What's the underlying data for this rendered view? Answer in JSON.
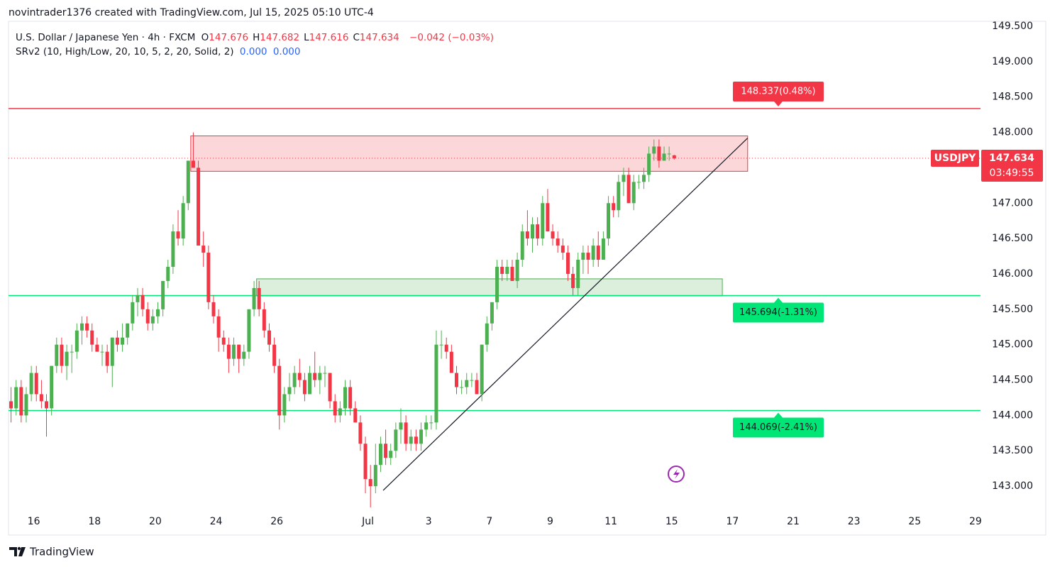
{
  "header": {
    "watermark": "novintrader1376 created with TradingView.com, Jul 15, 2025 05:10 UTC-4",
    "symbol": "U.S. Dollar / Japanese Yen · 4h · FXCM",
    "ohlc": [
      {
        "k": "O",
        "v": "147.676"
      },
      {
        "k": "H",
        "v": "147.682"
      },
      {
        "k": "L",
        "v": "147.616"
      },
      {
        "k": "C",
        "v": "147.634"
      }
    ],
    "change": "−0.042 (−0.03%)",
    "indicator": "SRv2 (10, High/Low, 20, 10, 5, 2, 20, Solid, 2)",
    "indicator_values": [
      "0.000",
      "0.000"
    ]
  },
  "footer": {
    "brand": "TradingView"
  },
  "chart_data": {
    "type": "candlestick",
    "up_color": "#4caf50",
    "down_color": "#f23645",
    "grid": false,
    "xlim": [
      0,
      192
    ],
    "ylim": [
      142.7,
      149.57
    ],
    "xticks": [
      {
        "value": 5,
        "label": "16"
      },
      {
        "value": 17,
        "label": "18"
      },
      {
        "value": 29,
        "label": "20"
      },
      {
        "value": 41,
        "label": "24"
      },
      {
        "value": 53,
        "label": "26"
      },
      {
        "value": 71,
        "label": "Jul"
      },
      {
        "value": 83,
        "label": "3"
      },
      {
        "value": 95,
        "label": "7"
      },
      {
        "value": 107,
        "label": "9"
      },
      {
        "value": 119,
        "label": "11"
      },
      {
        "value": 131,
        "label": "15"
      },
      {
        "value": 143,
        "label": "17"
      },
      {
        "value": 155,
        "label": "21"
      },
      {
        "value": 167,
        "label": "23"
      },
      {
        "value": 179,
        "label": "25"
      },
      {
        "value": 191,
        "label": "29"
      }
    ],
    "yticks": [
      {
        "value": 143,
        "label": "143.000"
      },
      {
        "value": 143.5,
        "label": "143.500"
      },
      {
        "value": 144,
        "label": "144.000"
      },
      {
        "value": 144.5,
        "label": "144.500"
      },
      {
        "value": 145,
        "label": "145.000"
      },
      {
        "value": 145.5,
        "label": "145.500"
      },
      {
        "value": 146,
        "label": "146.000"
      },
      {
        "value": 146.5,
        "label": "146.500"
      },
      {
        "value": 147,
        "label": "147.000"
      },
      {
        "value": 147.5,
        "label": "147.500"
      },
      {
        "value": 148,
        "label": "148.000"
      },
      {
        "value": 148.5,
        "label": "148.500"
      },
      {
        "value": 149,
        "label": "149.000"
      },
      {
        "value": 149.5,
        "label": "149.500"
      }
    ],
    "candles": [
      [
        144.2,
        144.4,
        143.9,
        144.1
      ],
      [
        144.1,
        144.5,
        144.0,
        144.4
      ],
      [
        144.4,
        144.5,
        143.9,
        144.0
      ],
      [
        144.0,
        144.4,
        143.9,
        144.3
      ],
      [
        144.3,
        144.7,
        144.2,
        144.6
      ],
      [
        144.6,
        144.7,
        144.2,
        144.3
      ],
      [
        144.3,
        144.5,
        144.1,
        144.2
      ],
      [
        144.2,
        144.3,
        143.7,
        144.1
      ],
      [
        144.1,
        144.7,
        144.0,
        144.7
      ],
      [
        144.7,
        145.1,
        144.6,
        145.0
      ],
      [
        145.0,
        145.1,
        144.6,
        144.7
      ],
      [
        144.7,
        145.0,
        144.5,
        144.9
      ],
      [
        144.9,
        145.0,
        144.6,
        144.9
      ],
      [
        144.9,
        145.3,
        144.8,
        145.2
      ],
      [
        145.2,
        145.4,
        145.0,
        145.3
      ],
      [
        145.3,
        145.4,
        145.1,
        145.2
      ],
      [
        145.2,
        145.3,
        144.9,
        145.0
      ],
      [
        145.0,
        145.1,
        144.9,
        144.9
      ],
      [
        144.9,
        145.0,
        144.7,
        144.9
      ],
      [
        144.9,
        145.0,
        144.6,
        144.7
      ],
      [
        144.7,
        145.1,
        144.4,
        145.1
      ],
      [
        145.1,
        145.2,
        144.9,
        145.0
      ],
      [
        145.0,
        145.3,
        144.9,
        145.1
      ],
      [
        145.1,
        145.3,
        145.0,
        145.3
      ],
      [
        145.3,
        145.7,
        145.2,
        145.6
      ],
      [
        145.6,
        145.8,
        145.4,
        145.7
      ],
      [
        145.7,
        145.8,
        145.4,
        145.5
      ],
      [
        145.5,
        145.6,
        145.2,
        145.3
      ],
      [
        145.3,
        145.5,
        145.2,
        145.4
      ],
      [
        145.4,
        145.6,
        145.3,
        145.5
      ],
      [
        145.5,
        145.9,
        145.4,
        145.9
      ],
      [
        145.9,
        146.2,
        145.8,
        146.1
      ],
      [
        146.1,
        146.7,
        146.0,
        146.6
      ],
      [
        146.6,
        146.9,
        146.4,
        146.5
      ],
      [
        146.5,
        147.1,
        146.4,
        147.0
      ],
      [
        147.0,
        147.6,
        146.9,
        147.6
      ],
      [
        147.6,
        148.0,
        147.5,
        147.5
      ],
      [
        147.5,
        147.6,
        146.4,
        146.4
      ],
      [
        146.4,
        146.6,
        146.1,
        146.3
      ],
      [
        146.3,
        146.4,
        145.5,
        145.6
      ],
      [
        145.6,
        145.7,
        145.3,
        145.4
      ],
      [
        145.4,
        145.5,
        144.9,
        145.1
      ],
      [
        145.1,
        145.2,
        144.9,
        145.0
      ],
      [
        145.0,
        145.1,
        144.6,
        144.8
      ],
      [
        144.8,
        145.1,
        144.7,
        145.0
      ],
      [
        145.0,
        145.0,
        144.6,
        144.8
      ],
      [
        144.8,
        145.0,
        144.7,
        144.9
      ],
      [
        144.9,
        145.5,
        144.8,
        145.5
      ],
      [
        145.5,
        145.9,
        145.4,
        145.8
      ],
      [
        145.8,
        145.9,
        145.4,
        145.5
      ],
      [
        145.5,
        145.6,
        145.1,
        145.2
      ],
      [
        145.2,
        145.3,
        144.9,
        145.0
      ],
      [
        145.0,
        145.1,
        144.6,
        144.7
      ],
      [
        144.7,
        144.8,
        143.8,
        144.0
      ],
      [
        144.0,
        144.4,
        143.9,
        144.3
      ],
      [
        144.3,
        144.6,
        144.2,
        144.4
      ],
      [
        144.4,
        144.7,
        144.3,
        144.6
      ],
      [
        144.6,
        144.8,
        144.4,
        144.5
      ],
      [
        144.5,
        144.6,
        144.2,
        144.3
      ],
      [
        144.3,
        144.7,
        144.3,
        144.6
      ],
      [
        144.6,
        144.9,
        144.4,
        144.5
      ],
      [
        144.5,
        144.7,
        144.3,
        144.6
      ],
      [
        144.6,
        144.7,
        144.4,
        144.6
      ],
      [
        144.6,
        144.6,
        144.1,
        144.2
      ],
      [
        144.2,
        144.3,
        143.9,
        144.0
      ],
      [
        144.0,
        144.2,
        143.9,
        144.1
      ],
      [
        144.1,
        144.5,
        144.0,
        144.4
      ],
      [
        144.4,
        144.5,
        144.0,
        144.1
      ],
      [
        144.1,
        144.2,
        143.9,
        143.9
      ],
      [
        143.9,
        144.0,
        143.5,
        143.6
      ],
      [
        143.6,
        143.7,
        142.9,
        143.1
      ],
      [
        143.1,
        143.3,
        142.7,
        143.0
      ],
      [
        143.0,
        143.6,
        142.9,
        143.3
      ],
      [
        143.3,
        143.7,
        143.2,
        143.6
      ],
      [
        143.6,
        143.8,
        143.3,
        143.4
      ],
      [
        143.4,
        143.6,
        143.3,
        143.5
      ],
      [
        143.5,
        143.9,
        143.4,
        143.8
      ],
      [
        143.8,
        144.1,
        143.6,
        143.9
      ],
      [
        143.9,
        144.0,
        143.5,
        143.6
      ],
      [
        143.6,
        143.8,
        143.5,
        143.7
      ],
      [
        143.7,
        143.8,
        143.5,
        143.6
      ],
      [
        143.6,
        143.9,
        143.5,
        143.8
      ],
      [
        143.8,
        144.0,
        143.7,
        143.9
      ],
      [
        143.9,
        144.0,
        143.8,
        143.9
      ],
      [
        143.9,
        145.2,
        143.8,
        145.0
      ],
      [
        145.0,
        145.2,
        144.8,
        145.0
      ],
      [
        145.0,
        145.1,
        144.8,
        144.9
      ],
      [
        144.9,
        145.0,
        144.6,
        144.6
      ],
      [
        144.6,
        144.7,
        144.3,
        144.4
      ],
      [
        144.4,
        144.5,
        144.3,
        144.4
      ],
      [
        144.4,
        144.6,
        144.3,
        144.5
      ],
      [
        144.5,
        144.6,
        144.4,
        144.5
      ],
      [
        144.5,
        144.6,
        144.3,
        144.3
      ],
      [
        144.3,
        145.0,
        144.2,
        145.0
      ],
      [
        145.0,
        145.4,
        144.9,
        145.3
      ],
      [
        145.3,
        145.6,
        145.2,
        145.6
      ],
      [
        145.6,
        146.2,
        145.5,
        146.1
      ],
      [
        146.1,
        146.2,
        145.9,
        146.0
      ],
      [
        146.0,
        146.2,
        145.9,
        146.1
      ],
      [
        146.1,
        146.2,
        145.9,
        145.9
      ],
      [
        145.9,
        146.3,
        145.8,
        146.2
      ],
      [
        146.2,
        146.7,
        146.1,
        146.6
      ],
      [
        146.6,
        146.9,
        146.4,
        146.5
      ],
      [
        146.5,
        146.8,
        146.3,
        146.7
      ],
      [
        146.7,
        146.8,
        146.4,
        146.5
      ],
      [
        146.5,
        147.1,
        146.4,
        147.0
      ],
      [
        147.0,
        147.2,
        146.6,
        146.6
      ],
      [
        146.6,
        146.7,
        146.4,
        146.5
      ],
      [
        146.5,
        146.6,
        146.3,
        146.4
      ],
      [
        146.4,
        146.5,
        146.2,
        146.3
      ],
      [
        146.3,
        146.4,
        145.9,
        146.0
      ],
      [
        146.0,
        146.1,
        145.7,
        145.8
      ],
      [
        145.8,
        146.3,
        145.7,
        146.2
      ],
      [
        146.2,
        146.4,
        146.0,
        146.3
      ],
      [
        146.3,
        146.4,
        146.0,
        146.2
      ],
      [
        146.2,
        146.5,
        146.1,
        146.4
      ],
      [
        146.4,
        146.6,
        146.1,
        146.2
      ],
      [
        146.2,
        146.6,
        146.2,
        146.5
      ],
      [
        146.5,
        147.1,
        146.4,
        147.0
      ],
      [
        147.0,
        147.1,
        146.8,
        146.9
      ],
      [
        146.9,
        147.4,
        146.8,
        147.3
      ],
      [
        147.3,
        147.5,
        147.1,
        147.4
      ],
      [
        147.4,
        147.5,
        147.0,
        147.0
      ],
      [
        147.0,
        147.4,
        146.9,
        147.3
      ],
      [
        147.3,
        147.4,
        147.2,
        147.3
      ],
      [
        147.3,
        147.5,
        147.2,
        147.4
      ],
      [
        147.4,
        147.8,
        147.3,
        147.7
      ],
      [
        147.7,
        147.9,
        147.6,
        147.8
      ],
      [
        147.8,
        147.9,
        147.5,
        147.6
      ],
      [
        147.6,
        147.8,
        147.6,
        147.7
      ],
      [
        147.7,
        147.8,
        147.6,
        147.7
      ],
      [
        147.676,
        147.682,
        147.616,
        147.634
      ]
    ],
    "zones": [
      {
        "from": 36,
        "to": 146,
        "low": 147.45,
        "high": 147.95,
        "color": "#f23645"
      },
      {
        "from": 49,
        "to": 141,
        "low": 145.69,
        "high": 145.93,
        "color": "#4caf50"
      }
    ],
    "trendline": {
      "x": [
        74,
        146
      ],
      "y": [
        142.94,
        147.92
      ],
      "color": "#131722"
    },
    "levels": [
      {
        "value": 148.337,
        "label": "148.337(0.48%)",
        "color": "#f23645"
      },
      {
        "value": 145.694,
        "label": "145.694(-1.31%)",
        "color": "#00e676"
      },
      {
        "value": 144.069,
        "label": "144.069(-2.41%)",
        "color": "#00e676"
      }
    ],
    "last": {
      "value": 147.634,
      "label": "147.634",
      "symbol": "USDJPY",
      "countdown": "03:49:55",
      "color": "#f23645"
    }
  }
}
